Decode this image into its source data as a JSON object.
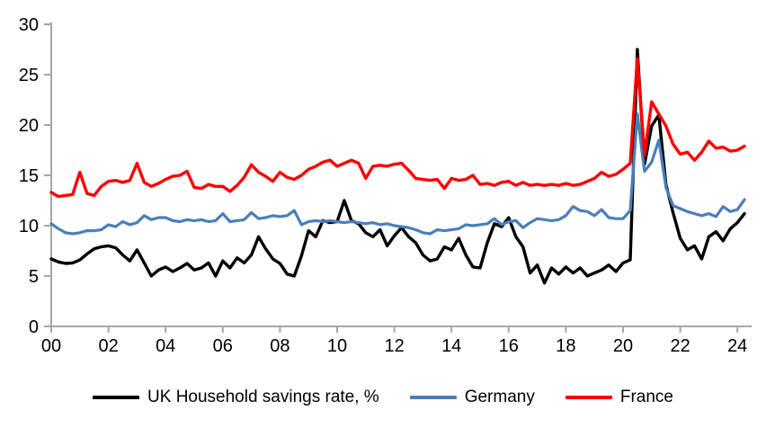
{
  "chart_data": {
    "type": "line",
    "title": "",
    "legend_position": "bottom",
    "grid": false,
    "x_start_year": 2000,
    "x_step_years": 0.25,
    "x_axis": {
      "tick_years": [
        0,
        2,
        4,
        6,
        8,
        10,
        12,
        14,
        16,
        18,
        20,
        22,
        24
      ],
      "tick_labels": [
        "00",
        "02",
        "04",
        "06",
        "08",
        "10",
        "12",
        "14",
        "16",
        "18",
        "20",
        "22",
        "24"
      ]
    },
    "y_axis": {
      "ticks": [
        0,
        5,
        10,
        15,
        20,
        25,
        30
      ],
      "range": [
        0,
        30
      ]
    },
    "axis_color": "#a6a6a6",
    "series": [
      {
        "id": "uk",
        "name": "UK Household savings rate, %",
        "color": "#000000",
        "width": 3.4,
        "values": [
          6.7,
          6.4,
          6.25,
          6.3,
          6.6,
          7.2,
          7.7,
          7.9,
          8.0,
          7.8,
          7.1,
          6.5,
          7.6,
          6.3,
          5.0,
          5.6,
          5.9,
          5.45,
          5.8,
          6.25,
          5.6,
          5.8,
          6.3,
          5.0,
          6.5,
          5.8,
          6.8,
          6.3,
          7.1,
          8.9,
          7.7,
          6.7,
          6.25,
          5.2,
          5.0,
          7.0,
          9.5,
          8.9,
          10.5,
          10.3,
          10.4,
          12.5,
          10.5,
          10.2,
          9.3,
          8.9,
          9.6,
          8.0,
          9.0,
          9.8,
          8.9,
          8.3,
          7.1,
          6.5,
          6.7,
          7.9,
          7.6,
          8.75,
          7.1,
          5.9,
          5.8,
          8.3,
          10.2,
          9.9,
          10.8,
          8.9,
          7.9,
          5.3,
          6.1,
          4.3,
          5.8,
          5.2,
          5.9,
          5.3,
          5.8,
          5.0,
          5.3,
          5.6,
          6.1,
          5.45,
          6.3,
          6.6,
          27.5,
          16.1,
          19.9,
          21.0,
          14.1,
          11.3,
          8.75,
          7.6,
          8.0,
          6.7,
          8.9,
          9.4,
          8.5,
          9.7,
          10.3,
          11.2
        ]
      },
      {
        "id": "germany",
        "name": "Germany",
        "color": "#4a7ebb",
        "width": 3.2,
        "values": [
          10.2,
          9.7,
          9.3,
          9.2,
          9.3,
          9.5,
          9.5,
          9.6,
          10.1,
          9.9,
          10.4,
          10.1,
          10.3,
          11.0,
          10.6,
          10.8,
          10.8,
          10.5,
          10.4,
          10.6,
          10.5,
          10.6,
          10.4,
          10.5,
          11.2,
          10.4,
          10.5,
          10.6,
          11.3,
          10.7,
          10.8,
          11.0,
          10.9,
          11.0,
          11.5,
          10.1,
          10.4,
          10.5,
          10.4,
          10.5,
          10.4,
          10.3,
          10.4,
          10.3,
          10.2,
          10.3,
          10.1,
          10.2,
          10.0,
          9.9,
          9.8,
          9.6,
          9.3,
          9.2,
          9.6,
          9.5,
          9.6,
          9.7,
          10.1,
          10.0,
          10.1,
          10.2,
          10.7,
          10.1,
          10.4,
          10.5,
          9.8,
          10.3,
          10.7,
          10.6,
          10.5,
          10.6,
          11.0,
          11.9,
          11.5,
          11.4,
          11.0,
          11.6,
          10.8,
          10.7,
          10.7,
          11.5,
          21.1,
          15.4,
          16.3,
          18.5,
          13.8,
          12.0,
          11.7,
          11.4,
          11.2,
          11.0,
          11.2,
          10.9,
          11.9,
          11.4,
          11.6,
          12.6
        ]
      },
      {
        "id": "france",
        "name": "France",
        "color": "#ff0000",
        "width": 3.4,
        "values": [
          13.3,
          12.9,
          13.0,
          13.1,
          15.3,
          13.2,
          13.0,
          13.9,
          14.4,
          14.5,
          14.3,
          14.5,
          16.2,
          14.3,
          13.9,
          14.2,
          14.6,
          14.9,
          15.0,
          15.4,
          13.8,
          13.7,
          14.1,
          13.9,
          13.9,
          13.4,
          14.0,
          14.8,
          16.05,
          15.3,
          14.9,
          14.4,
          15.3,
          14.8,
          14.6,
          15.0,
          15.6,
          15.9,
          16.3,
          16.5,
          15.9,
          16.2,
          16.5,
          16.2,
          14.7,
          15.9,
          16.0,
          15.9,
          16.1,
          16.2,
          15.5,
          14.7,
          14.6,
          14.5,
          14.6,
          13.7,
          14.7,
          14.5,
          14.6,
          15.0,
          14.1,
          14.2,
          14.0,
          14.3,
          14.4,
          14.0,
          14.3,
          14.0,
          14.1,
          14.0,
          14.1,
          14.0,
          14.2,
          14.0,
          14.1,
          14.4,
          14.7,
          15.3,
          14.9,
          15.1,
          15.6,
          16.2,
          26.6,
          17.0,
          22.3,
          21.1,
          19.9,
          18.1,
          17.1,
          17.3,
          16.5,
          17.3,
          18.4,
          17.7,
          17.8,
          17.4,
          17.5,
          17.9
        ]
      }
    ]
  }
}
